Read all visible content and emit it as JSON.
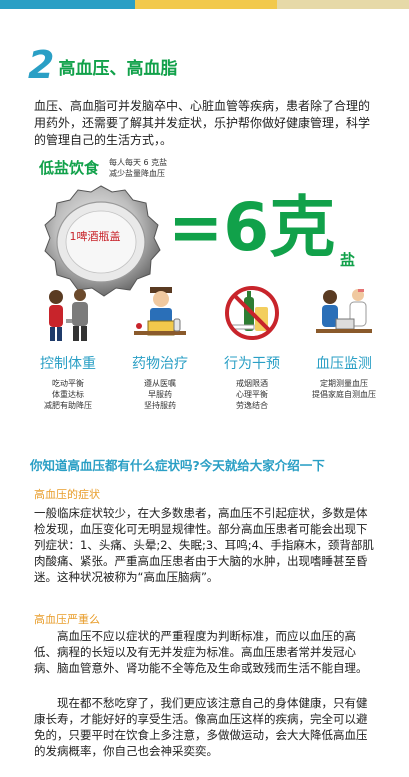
{
  "colors": {
    "green": "#11a14a",
    "teal": "#2a9fc5",
    "orange": "#e89d2b",
    "red": "#c8242b"
  },
  "section": {
    "number": "2",
    "title": "高血压、高血脂"
  },
  "intro": "血压、高血脂可并发脑卒中、心脏血管等疾病，患者除了合理的用药外，还需要了解其并发症状，乐护帮你做好健康管理，科学的管理自己的生活方式，。",
  "salt": {
    "title": "低盐饮食",
    "note_line1": "每人每天 6 克盐",
    "note_line2": "减少盐量降血压",
    "cap_label": "1啤酒瓶盖",
    "equation": "=6克",
    "unit": "盐"
  },
  "categories": [
    {
      "label": "控制体重",
      "desc": [
        "吃动平衡",
        "体重达标",
        "减肥有助降压"
      ],
      "icon": "weight-control-icon"
    },
    {
      "label": "药物治疗",
      "desc": [
        "遵从医嘱",
        "早服药",
        "坚持服药"
      ],
      "icon": "medication-icon"
    },
    {
      "label": "行为干预",
      "desc": [
        "戒烟限酒",
        "心理平衡",
        "劳逸结合"
      ],
      "icon": "no-smoking-drinking-icon"
    },
    {
      "label": "血压监测",
      "desc": [
        "定期测量血压",
        "提倡家庭自测血压"
      ],
      "icon": "blood-pressure-monitor-icon"
    }
  ],
  "question": "你知道高血压都有什么症状吗?今天就给大家介绍一下",
  "symptoms": {
    "heading": "高血压的症状",
    "body": "一般临床症状较少，在大多数患者，高血压不引起症状，多数是体检发现，血压变化可无明显规律性。部分高血压患者可能会出现下列症状：1、头痛、头晕;2、失眠;3、耳鸣;4、手指麻木，颈背部肌肉酸痛、紧张。严重高血压患者由于大脑的水肿，出现嗜睡甚至昏迷。这种状况被称为“高血压脑病”。"
  },
  "severity": {
    "heading": "高血压严重么",
    "body1": "　　高血压不应以症状的严重程度为判断标准，而应以血压的高低、病程的长短以及有无并发症为标准。高血压患者常并发冠心病、脑血管意外、肾功能不全等危及生命或致残而生活不能自理。",
    "body2": "　　现在都不愁吃穿了，我们更应该注意自己的身体健康，只有健康长寿，才能好好的享受生活。像高血压这样的疾病，完全可以避免的，只要平时在饮食上多注意，多做做运动，会大大降低高血压的发病概率，你自己也会神采奕奕。"
  }
}
